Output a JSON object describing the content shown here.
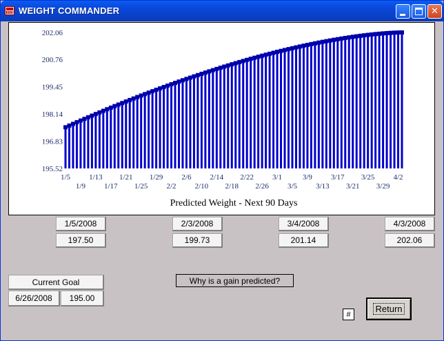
{
  "window": {
    "title": "WEIGHT COMMANDER"
  },
  "titlebar_buttons": {
    "minimize": "minimize",
    "maximize": "maximize",
    "close": "✕"
  },
  "chart_data": {
    "type": "bar",
    "title": "Predicted Weight - Next 90 Days",
    "xlabel": "",
    "ylabel": "",
    "ylim": [
      195.52,
      202.06
    ],
    "y_ticks": [
      "202.06",
      "200.76",
      "199.45",
      "198.14",
      "196.83",
      "195.52"
    ],
    "x_ticks_upper": [
      "1/5",
      "1/13",
      "1/21",
      "1/29",
      "2/6",
      "2/14",
      "2/22",
      "3/1",
      "3/9",
      "3/17",
      "3/25",
      "4/2"
    ],
    "x_ticks_lower": [
      "1/9",
      "1/17",
      "1/25",
      "2/2",
      "2/10",
      "2/18",
      "2/26",
      "3/5",
      "3/13",
      "3/21",
      "3/29"
    ],
    "start_value": 197.5,
    "end_value": 202.06,
    "bar_color": "#0000cc",
    "marker_color": "#0000aa"
  },
  "checkpoints": [
    {
      "date": "1/5/2008",
      "weight": "197.50"
    },
    {
      "date": "2/3/2008",
      "weight": "199.73"
    },
    {
      "date": "3/4/2008",
      "weight": "201.14"
    },
    {
      "date": "4/3/2008",
      "weight": "202.06"
    }
  ],
  "goal": {
    "label": "Current Goal",
    "date": "6/26/2008",
    "weight": "195.00"
  },
  "buttons": {
    "why": "Why is a gain predicted?",
    "hash": "#",
    "return": "Return"
  }
}
